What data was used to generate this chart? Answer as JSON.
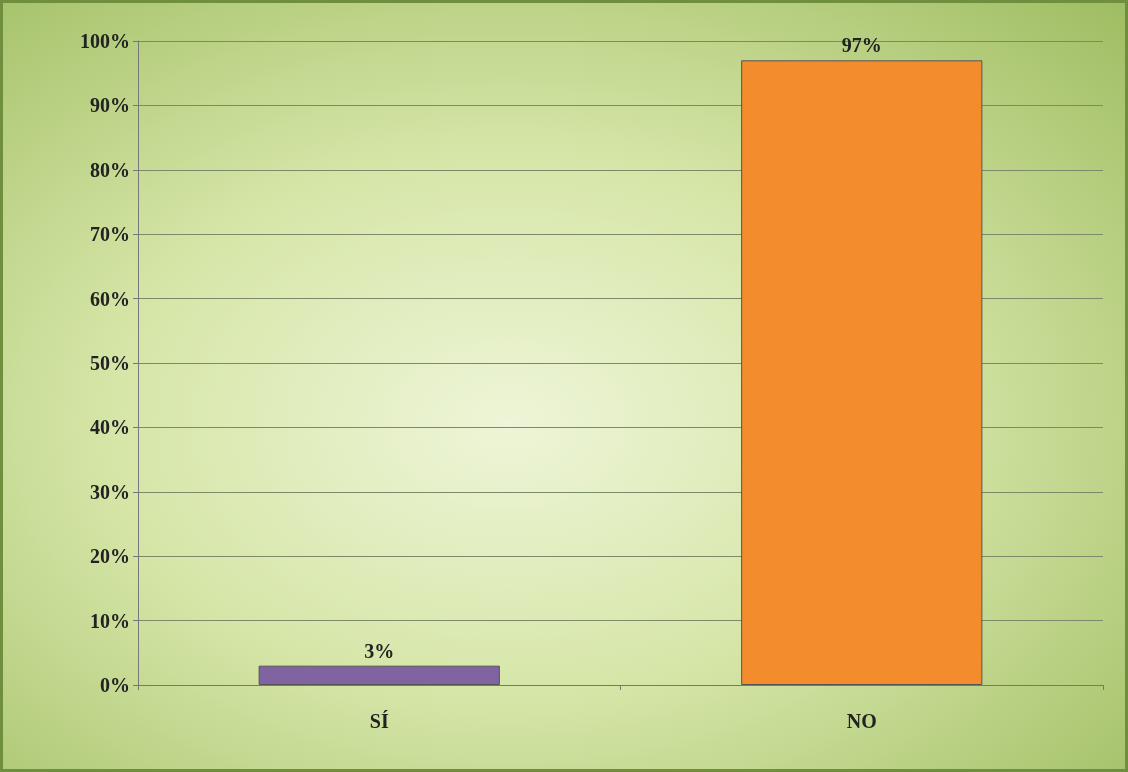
{
  "chart_data": {
    "type": "bar",
    "categories": [
      "SÍ",
      "NO"
    ],
    "values": [
      3,
      97
    ],
    "colors": [
      "#8064a2",
      "#f28c2c"
    ],
    "value_labels": [
      "3%",
      "97%"
    ],
    "ylim": [
      0,
      100
    ],
    "yticks": [
      {
        "value": 0,
        "label": "0%"
      },
      {
        "value": 10,
        "label": "10%"
      },
      {
        "value": 20,
        "label": "20%"
      },
      {
        "value": 30,
        "label": "30%"
      },
      {
        "value": 40,
        "label": "40%"
      },
      {
        "value": 50,
        "label": "50%"
      },
      {
        "value": 60,
        "label": "60%"
      },
      {
        "value": 70,
        "label": "70%"
      },
      {
        "value": 80,
        "label": "80%"
      },
      {
        "value": 90,
        "label": "90%"
      },
      {
        "value": 100,
        "label": "100%"
      }
    ],
    "grid": "y"
  }
}
